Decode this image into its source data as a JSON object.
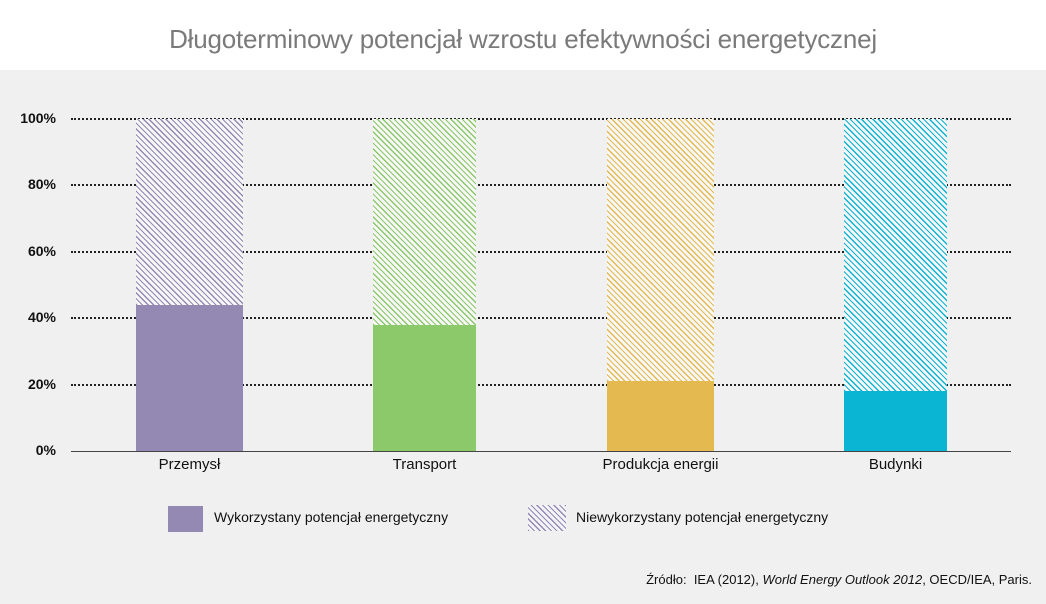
{
  "title": "Długoterminowy potencjał wzrostu efektywności energetycznej",
  "chart_data": {
    "type": "bar",
    "stacked": true,
    "title": "Długoterminowy potencjał wzrostu efektywności energetycznej",
    "xlabel": "",
    "ylabel": "",
    "ylim": [
      0,
      100
    ],
    "yticks": [
      "0%",
      "20%",
      "40%",
      "60%",
      "80%",
      "100%"
    ],
    "grid": true,
    "legend_position": "bottom",
    "categories": [
      "Przemysł",
      "Transport",
      "Produkcja energii",
      "Budynki"
    ],
    "colors": [
      "#9389b2",
      "#8cc96a",
      "#e4b950",
      "#0ab4d3"
    ],
    "series": [
      {
        "name": "Wykorzystany potencjał energetyczny",
        "values": [
          44,
          38,
          21,
          18
        ],
        "fill": "solid"
      },
      {
        "name": "Niewykorzystany potencjał energetyczny",
        "values": [
          56,
          62,
          79,
          82
        ],
        "fill": "hatched"
      }
    ]
  },
  "legend": {
    "used": "Wykorzystany potencjał energetyczny",
    "unused": "Niewykorzystany potencjał energetyczny"
  },
  "source": {
    "label": "Źródło:",
    "pre": "IEA (2012),",
    "italic": "World Energy Outlook 2012",
    "post": ", OECD/IEA, Paris."
  }
}
